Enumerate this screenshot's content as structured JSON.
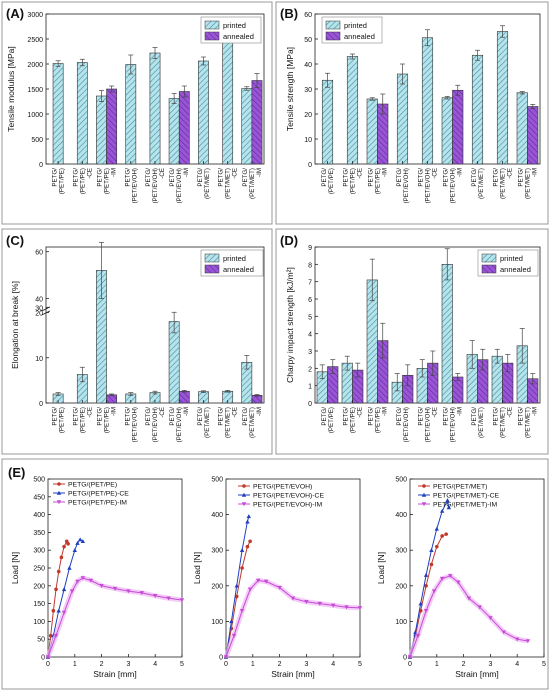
{
  "panel_letters": [
    "(A)",
    "(B)",
    "(C)",
    "(D)",
    "(E)"
  ],
  "colors": {
    "printed_fill": "#b7e3ea",
    "printed_hatch": "#3d8fa6",
    "annealed_fill": "#9a55d6",
    "annealed_hatch": "#5e2a99",
    "panel_border": "#999999",
    "error_bar": "#444444"
  },
  "chart_data": [
    {
      "type": "bar",
      "panel": "(A)",
      "ylabel": "Tensile modulus [MPa]",
      "ylim": [
        0,
        3000
      ],
      "yticks": [
        0,
        500,
        1000,
        1500,
        2000,
        2500,
        3000
      ],
      "legend_position": "top-right",
      "categories": [
        "PETG/ (PET/PE)",
        "PETG/ (PET/PE) -CE",
        "PETG/ (PET/PE) -IM",
        "PETG/ (PET/EVOH)",
        "PETG/ (PET/EVOH) -CE",
        "PETG/ (PET/EVOH) -IM",
        "PETG/ (PET/MET)",
        "PETG/ (PET/MET) -CE",
        "PETG/ (PET/MET) -IM"
      ],
      "series": [
        {
          "name": "printed",
          "values": [
            2010,
            2030,
            1360,
            1990,
            2220,
            1310,
            2060,
            2630,
            1510
          ],
          "errors": [
            55,
            65,
            110,
            190,
            110,
            100,
            80,
            90,
            35
          ]
        },
        {
          "name": "annealed",
          "values": [
            null,
            null,
            1500,
            null,
            null,
            1450,
            null,
            null,
            1670
          ],
          "errors": [
            null,
            null,
            60,
            null,
            null,
            110,
            null,
            null,
            140
          ]
        }
      ]
    },
    {
      "type": "bar",
      "panel": "(B)",
      "ylabel": "Tensile strength [MPa]",
      "ylim": [
        0,
        60
      ],
      "yticks": [
        0,
        10,
        20,
        30,
        40,
        50,
        60
      ],
      "legend_position": "top-left",
      "categories": [
        "PETG/ (PET/PE)",
        "PETG/ (PET/PE) -CE",
        "PETG/ (PET/PE) -IM",
        "PETG/ (PET/EVOH)",
        "PETG/ (PET/EVOH) -CE",
        "PETG/ (PET/EVOH) -IM",
        "PETG/ (PET/MET)",
        "PETG/ (PET/MET) -CE",
        "PETG/ (PET/MET) -IM"
      ],
      "series": [
        {
          "name": "printed",
          "values": [
            33.5,
            43,
            26,
            36,
            50.5,
            26.5,
            43.5,
            53,
            28.5
          ],
          "errors": [
            2.8,
            1,
            0.5,
            4,
            3.2,
            0.5,
            2,
            2.3,
            0.5
          ]
        },
        {
          "name": "annealed",
          "values": [
            null,
            null,
            24,
            null,
            null,
            29.5,
            null,
            null,
            23
          ],
          "errors": [
            null,
            null,
            4,
            null,
            null,
            2,
            null,
            null,
            0.8
          ]
        }
      ]
    },
    {
      "type": "bar",
      "panel": "(C)",
      "ylabel": "Elongation at break [%]",
      "axis_break": true,
      "ylim": [
        0,
        65
      ],
      "yticks": [
        0,
        10,
        20,
        30,
        40,
        60
      ],
      "legend_position": "top-right",
      "categories": [
        "PETG/ (PET/PE)",
        "PETG/ (PET/PE) -CE",
        "PETG/ (PET/PE) -IM",
        "PETG/ (PET/EVOH)",
        "PETG/ (PET/EVOH) -CE",
        "PETG/ (PET/EVOH) -IM",
        "PETG/ (PET/MET)",
        "PETG/ (PET/MET) -CE",
        "PETG/ (PET/MET) -IM"
      ],
      "series": [
        {
          "name": "printed",
          "values": [
            2,
            6.3,
            52,
            2,
            2.3,
            18,
            2.5,
            2.6,
            9
          ],
          "errors": [
            0.3,
            1.6,
            12,
            0.3,
            0.3,
            2.5,
            0.2,
            0.2,
            1.5
          ]
        },
        {
          "name": "annealed",
          "values": [
            null,
            null,
            1.8,
            null,
            null,
            2.6,
            null,
            null,
            1.7
          ],
          "errors": [
            null,
            null,
            0.2,
            null,
            null,
            0.2,
            null,
            null,
            0.2
          ]
        }
      ]
    },
    {
      "type": "bar",
      "panel": "(D)",
      "ylabel": "Charpy impact strength [kJ/m²]",
      "ylim": [
        0,
        9
      ],
      "yticks": [
        0,
        1,
        2,
        3,
        4,
        5,
        6,
        7,
        8,
        9
      ],
      "legend_position": "top-right",
      "categories": [
        "PETG/ (PET/PE)",
        "PETG/ (PET/PE) -CE",
        "PETG/ (PET/PE) -IM",
        "PETG/ (PET/EVOH)",
        "PETG/ (PET/EVOH) -CE",
        "PETG/ (PET/EVOH) -IM",
        "PETG/ (PET/MET)",
        "PETG/ (PET/MET) -CE",
        "PETG/ (PET/MET) -IM"
      ],
      "series": [
        {
          "name": "printed",
          "values": [
            1.8,
            2.3,
            7.1,
            1.2,
            2.0,
            8.0,
            2.8,
            2.7,
            3.3
          ],
          "errors": [
            0.4,
            0.4,
            1.2,
            0.5,
            0.5,
            0.9,
            0.8,
            0.4,
            1.0
          ]
        },
        {
          "name": "annealed",
          "values": [
            2.1,
            1.9,
            3.6,
            1.6,
            2.3,
            1.5,
            2.5,
            2.3,
            1.4
          ],
          "errors": [
            0.4,
            0.4,
            1.0,
            0.6,
            0.7,
            0.2,
            0.6,
            0.5,
            0.3
          ]
        }
      ]
    },
    {
      "type": "line",
      "panel": "(E)-left",
      "xlabel": "Strain [mm]",
      "ylabel": "Load [N]",
      "xlim": [
        0,
        5
      ],
      "ylim": [
        0,
        500
      ],
      "xticks": [
        0,
        1,
        2,
        3,
        4,
        5
      ],
      "yticks": [
        0,
        50,
        100,
        150,
        200,
        250,
        300,
        350,
        400,
        450,
        500
      ],
      "legend_position": "top-left",
      "series": [
        {
          "name": "PETG/(PET/PE)",
          "marker": "circle",
          "color": "#c0392b",
          "x": [
            0,
            0.1,
            0.2,
            0.3,
            0.4,
            0.5,
            0.6,
            0.7,
            0.75
          ],
          "y": [
            0,
            60,
            130,
            190,
            240,
            280,
            310,
            325,
            318
          ]
        },
        {
          "name": "PETG/(PET/PE)-CE",
          "marker": "triangle-up",
          "color": "#1f3fbf",
          "x": [
            0,
            0.2,
            0.4,
            0.6,
            0.8,
            1.0,
            1.1,
            1.2,
            1.3
          ],
          "y": [
            0,
            60,
            130,
            190,
            250,
            300,
            320,
            330,
            325
          ]
        },
        {
          "name": "PETG/(PET/PE)-IM",
          "marker": "triangle-down",
          "color": "#c64bd6",
          "x": [
            0,
            0.3,
            0.6,
            0.9,
            1.1,
            1.3,
            1.6,
            2.0,
            2.5,
            3.0,
            3.5,
            4.0,
            4.5,
            5.0
          ],
          "y": [
            0,
            60,
            125,
            185,
            212,
            222,
            215,
            200,
            192,
            185,
            180,
            172,
            165,
            160
          ]
        }
      ]
    },
    {
      "type": "line",
      "panel": "(E)-middle",
      "xlabel": "Strain [mm]",
      "ylabel": "Load [N]",
      "xlim": [
        0,
        5
      ],
      "ylim": [
        0,
        500
      ],
      "xticks": [
        0,
        1,
        2,
        3,
        4,
        5
      ],
      "yticks": [
        0,
        100,
        200,
        300,
        400,
        500
      ],
      "legend_position": "top-right",
      "series": [
        {
          "name": "PETG/(PET/EVOH)",
          "marker": "circle",
          "color": "#c0392b",
          "x": [
            0,
            0.2,
            0.4,
            0.6,
            0.8,
            0.9
          ],
          "y": [
            0,
            80,
            170,
            250,
            310,
            325
          ]
        },
        {
          "name": "PETG/(PET/EVOH)-CE",
          "marker": "triangle-up",
          "color": "#1f3fbf",
          "x": [
            0,
            0.2,
            0.4,
            0.6,
            0.8,
            0.85
          ],
          "y": [
            0,
            100,
            200,
            300,
            380,
            395
          ]
        },
        {
          "name": "PETG/(PET/EVOH)-IM",
          "marker": "triangle-down",
          "color": "#c64bd6",
          "x": [
            0,
            0.3,
            0.6,
            0.9,
            1.2,
            1.5,
            2.0,
            2.5,
            3.0,
            3.5,
            4.0,
            4.5,
            5.0
          ],
          "y": [
            0,
            60,
            130,
            190,
            215,
            212,
            195,
            165,
            155,
            150,
            145,
            140,
            138
          ]
        }
      ]
    },
    {
      "type": "line",
      "panel": "(E)-right",
      "xlabel": "Strain [mm]",
      "ylabel": "Load [N]",
      "xlim": [
        0,
        5
      ],
      "ylim": [
        0,
        500
      ],
      "xticks": [
        0,
        1,
        2,
        3,
        4,
        5
      ],
      "yticks": [
        0,
        100,
        200,
        300,
        400,
        500
      ],
      "legend_position": "top-right",
      "series": [
        {
          "name": "PETG/(PET/MET)",
          "marker": "circle",
          "color": "#c0392b",
          "x": [
            0,
            0.2,
            0.4,
            0.6,
            0.8,
            1.0,
            1.2,
            1.35
          ],
          "y": [
            0,
            60,
            130,
            200,
            260,
            310,
            340,
            345
          ]
        },
        {
          "name": "PETG/(PET/MET)-CE",
          "marker": "triangle-up",
          "color": "#1f3fbf",
          "x": [
            0,
            0.2,
            0.4,
            0.6,
            0.8,
            1.0,
            1.2,
            1.4,
            1.45
          ],
          "y": [
            0,
            70,
            150,
            230,
            300,
            360,
            410,
            440,
            420
          ]
        },
        {
          "name": "PETG/(PET/MET)-IM",
          "marker": "triangle-down",
          "color": "#c64bd6",
          "x": [
            0,
            0.3,
            0.6,
            0.9,
            1.2,
            1.5,
            1.8,
            2.2,
            2.6,
            3.0,
            3.5,
            4.0,
            4.4
          ],
          "y": [
            0,
            60,
            130,
            185,
            220,
            228,
            210,
            165,
            140,
            110,
            70,
            50,
            45
          ]
        }
      ]
    }
  ]
}
